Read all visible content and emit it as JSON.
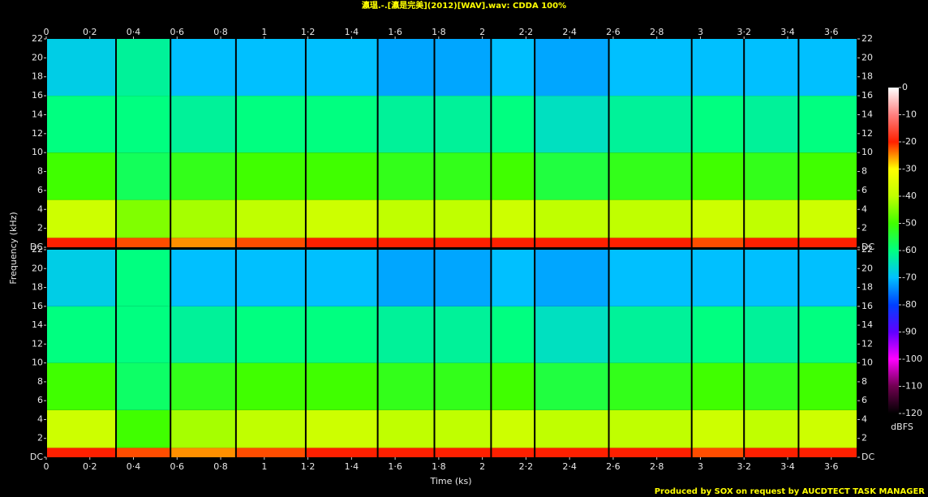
{
  "chart_data": {
    "type": "spectrogram",
    "title": "瀛瑥.-.[瀛是完美](2012)[WAV].wav: CDDA 100%",
    "xlabel": "Time (ks)",
    "ylabel": "Frequency (kHz)",
    "colorbar_label": "dBFS",
    "credit": "Produced by SOX on request by AUCDTECT TASK MANAGER",
    "xlim": [
      0,
      3.72
    ],
    "xticks": [
      0,
      {
        "value": 0.2,
        "label": "0·2"
      },
      {
        "value": 0.4,
        "label": "0·4"
      },
      {
        "value": 0.6,
        "label": "0·6"
      },
      {
        "value": 0.8,
        "label": "0·8"
      },
      1,
      {
        "value": 1.2,
        "label": "1·2"
      },
      {
        "value": 1.4,
        "label": "1·4"
      },
      {
        "value": 1.6,
        "label": "1·6"
      },
      {
        "value": 1.8,
        "label": "1·8"
      },
      2,
      {
        "value": 2.2,
        "label": "2·2"
      },
      {
        "value": 2.4,
        "label": "2·4"
      },
      {
        "value": 2.6,
        "label": "2·6"
      },
      {
        "value": 2.8,
        "label": "2·8"
      },
      3,
      {
        "value": 3.2,
        "label": "3·2"
      },
      {
        "value": 3.4,
        "label": "3·4"
      },
      {
        "value": 3.6,
        "label": "3·6"
      }
    ],
    "ylim": [
      0,
      22
    ],
    "yticks": [
      {
        "value": 0,
        "label": "DC"
      },
      2,
      4,
      6,
      8,
      10,
      12,
      14,
      16,
      18,
      20,
      22
    ],
    "clim": [
      -120,
      0
    ],
    "cticks": [
      0,
      -10,
      -20,
      -30,
      -40,
      -50,
      -60,
      -70,
      -80,
      -90,
      -100,
      -110,
      -120
    ],
    "colormap": [
      "#000000",
      "#700050",
      "#ff00ff",
      "#6000ff",
      "#0040ff",
      "#00c0ff",
      "#00ff80",
      "#40ff00",
      "#c0ff00",
      "#ffff00",
      "#ff2000",
      "#ff8080",
      "#ffffff"
    ],
    "time_edges": [
      0,
      0.32,
      0.57,
      0.87,
      1.19,
      1.52,
      1.78,
      2.04,
      2.24,
      2.58,
      2.96,
      3.2,
      3.45,
      3.72
    ],
    "freq_edges": [
      0,
      1,
      5,
      10,
      16,
      22
    ],
    "channels": [
      {
        "values": [
          [
            -20,
            -38,
            -50,
            -60,
            -68
          ],
          [
            -22,
            -45,
            -57,
            -60,
            -62
          ],
          [
            -25,
            -42,
            -52,
            -62,
            -70
          ],
          [
            -22,
            -40,
            -50,
            -60,
            -70
          ],
          [
            -20,
            -38,
            -50,
            -60,
            -70
          ],
          [
            -20,
            -40,
            -52,
            -62,
            -72
          ],
          [
            -20,
            -40,
            -52,
            -62,
            -72
          ],
          [
            -20,
            -38,
            -50,
            -60,
            -70
          ],
          [
            -20,
            -40,
            -55,
            -65,
            -72
          ],
          [
            -20,
            -40,
            -52,
            -62,
            -70
          ],
          [
            -22,
            -38,
            -50,
            -60,
            -70
          ],
          [
            -20,
            -40,
            -52,
            -62,
            -70
          ],
          [
            -20,
            -38,
            -50,
            -60,
            -70
          ]
        ]
      },
      {
        "values": [
          [
            -20,
            -38,
            -50,
            -60,
            -68
          ],
          [
            -22,
            -50,
            -58,
            -60,
            -60
          ],
          [
            -25,
            -42,
            -52,
            -62,
            -70
          ],
          [
            -22,
            -40,
            -50,
            -60,
            -70
          ],
          [
            -20,
            -38,
            -50,
            -60,
            -70
          ],
          [
            -20,
            -40,
            -52,
            -62,
            -72
          ],
          [
            -20,
            -40,
            -52,
            -62,
            -72
          ],
          [
            -20,
            -38,
            -50,
            -60,
            -70
          ],
          [
            -20,
            -40,
            -55,
            -65,
            -72
          ],
          [
            -20,
            -40,
            -52,
            -62,
            -70
          ],
          [
            -22,
            -38,
            -50,
            -60,
            -70
          ],
          [
            -20,
            -40,
            -52,
            -62,
            -70
          ],
          [
            -20,
            -38,
            -50,
            -60,
            -70
          ]
        ]
      }
    ]
  }
}
